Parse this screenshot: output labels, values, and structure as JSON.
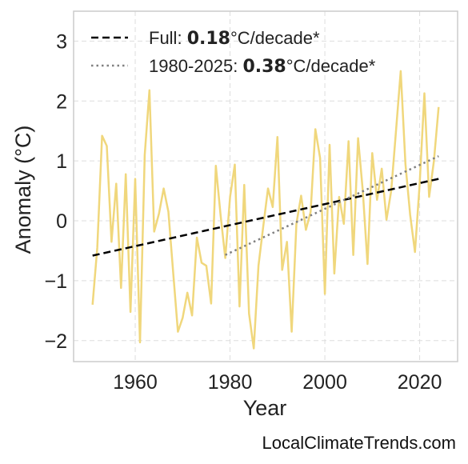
{
  "chart_data": {
    "type": "line",
    "xlabel": "Year",
    "ylabel": "Anomaly (°C)",
    "xlim": [
      1947,
      2028
    ],
    "ylim": [
      -2.35,
      3.5
    ],
    "xticks": [
      1960,
      1980,
      2000,
      2020
    ],
    "xtick_labels": [
      "1960",
      "1980",
      "2000",
      "2020"
    ],
    "yticks": [
      -2,
      -1,
      0,
      1,
      2,
      3
    ],
    "ytick_labels": [
      "−2",
      "−1",
      "0",
      "1",
      "2",
      "3"
    ],
    "grid": true,
    "legend_position": "top-left",
    "series": [
      {
        "kind": "annual",
        "color": "#f0d77c",
        "x": [
          1951,
          1952,
          1953,
          1954,
          1955,
          1956,
          1957,
          1958,
          1959,
          1960,
          1961,
          1962,
          1963,
          1964,
          1965,
          1966,
          1967,
          1968,
          1969,
          1970,
          1971,
          1972,
          1973,
          1974,
          1975,
          1976,
          1977,
          1978,
          1979,
          1980,
          1981,
          1982,
          1983,
          1984,
          1985,
          1986,
          1987,
          1988,
          1989,
          1990,
          1991,
          1992,
          1993,
          1994,
          1995,
          1996,
          1997,
          1998,
          1999,
          2000,
          2001,
          2002,
          2003,
          2004,
          2005,
          2006,
          2007,
          2008,
          2009,
          2010,
          2011,
          2012,
          2013,
          2014,
          2015,
          2016,
          2017,
          2018,
          2019,
          2020,
          2021,
          2022,
          2023,
          2024
        ],
        "y": [
          -1.4,
          -0.45,
          1.42,
          1.25,
          -0.35,
          0.62,
          -1.12,
          0.78,
          -1.52,
          0.7,
          -2.03,
          1.1,
          2.18,
          -0.18,
          0.12,
          0.54,
          0.15,
          -0.85,
          -1.85,
          -1.62,
          -1.2,
          -1.58,
          -0.28,
          -0.7,
          -0.75,
          -1.38,
          0.92,
          0.1,
          -0.62,
          0.4,
          0.94,
          -1.43,
          0.6,
          -1.55,
          -2.13,
          -0.75,
          -0.1,
          0.54,
          0.23,
          1.4,
          -0.82,
          -0.35,
          -1.85,
          -0.05,
          0.42,
          -0.15,
          0.15,
          1.53,
          1.05,
          -1.22,
          1.27,
          -0.88,
          0.4,
          -0.05,
          1.33,
          -0.57,
          1.38,
          0.5,
          -0.72,
          1.13,
          0.35,
          0.87,
          0.02,
          0.5,
          1.5,
          2.5,
          0.95,
          0.1,
          -0.52,
          0.62,
          2.13,
          0.4,
          1.0,
          1.9
        ]
      },
      {
        "kind": "trend",
        "name": "Full",
        "color": "#000000",
        "dash": "dashed",
        "x": [
          1951,
          2024
        ],
        "y": [
          -0.58,
          0.7
        ]
      },
      {
        "kind": "trend",
        "name": "1980-2025",
        "color": "#808080",
        "dash": "dotted",
        "x": [
          1979,
          2024
        ],
        "y": [
          -0.57,
          1.08
        ]
      }
    ],
    "legend": [
      {
        "prefix": "Full: ",
        "value": "0.18",
        "suffix": "°C/decade*"
      },
      {
        "prefix": "1980-2025: ",
        "value": "0.38",
        "suffix": "°C/decade*"
      }
    ]
  },
  "watermark": "LocalClimateTrends.com"
}
